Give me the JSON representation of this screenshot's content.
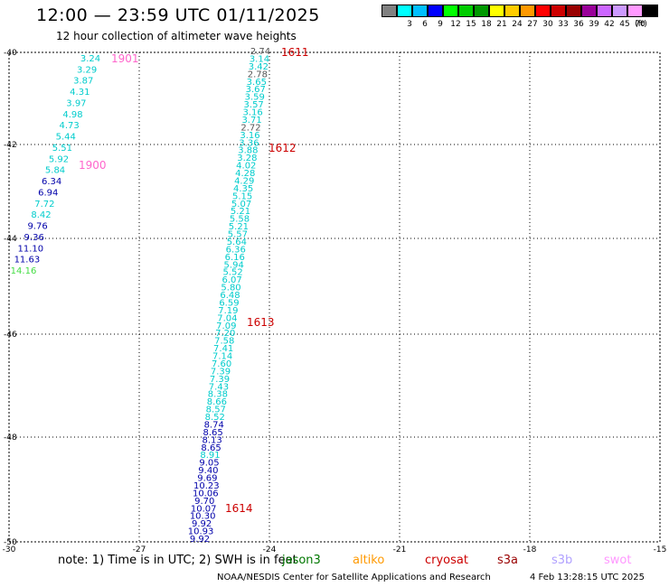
{
  "header": {
    "title": "12:00 — 23:59 UTC 01/11/2025",
    "subtitle": "12 hour collection of altimeter wave heights"
  },
  "legend": {
    "unit_label": "(ft)",
    "bins": [
      {
        "label": "",
        "color": "#808080"
      },
      {
        "label": "3",
        "color": "#00ffff"
      },
      {
        "label": "6",
        "color": "#00bfff"
      },
      {
        "label": "9",
        "color": "#0000ff"
      },
      {
        "label": "12",
        "color": "#00ff00"
      },
      {
        "label": "15",
        "color": "#00cc00"
      },
      {
        "label": "18",
        "color": "#009900"
      },
      {
        "label": "21",
        "color": "#ffff00"
      },
      {
        "label": "24",
        "color": "#ffcc00"
      },
      {
        "label": "27",
        "color": "#ff9900"
      },
      {
        "label": "30",
        "color": "#ff0000"
      },
      {
        "label": "33",
        "color": "#cc0000"
      },
      {
        "label": "36",
        "color": "#990000"
      },
      {
        "label": "39",
        "color": "#990099"
      },
      {
        "label": "42",
        "color": "#cc66ff"
      },
      {
        "label": "45",
        "color": "#cc99ff"
      },
      {
        "label": "70",
        "color": "#ff99ff"
      },
      {
        "label": "",
        "color": "#000000"
      }
    ]
  },
  "map": {
    "lat_labels": [
      "-40",
      "-42",
      "-44",
      "-46",
      "-48",
      "-50"
    ],
    "lon_labels": [
      "-30",
      "-27",
      "-24",
      "-21",
      "-18",
      "-15"
    ],
    "colors": {
      "cyan": "#00cccc",
      "blue": "#0000aa",
      "gray": "#555555",
      "green": "#44dd44",
      "red": "#cc0000",
      "pink": "#ff66cc"
    },
    "track_a": {
      "values": [
        "3.24",
        "3.29",
        "3.87",
        "4.31",
        "3.97",
        "4.98",
        "4.73",
        "5.44",
        "5.51",
        "5.92",
        "5.84",
        "6.34",
        "6.94",
        "7.72",
        "8.42",
        "9.76",
        "9.36",
        "11.10",
        "11.63",
        "14.16"
      ],
      "colors": [
        "cyan",
        "cyan",
        "cyan",
        "cyan",
        "cyan",
        "cyan",
        "cyan",
        "cyan",
        "cyan",
        "cyan",
        "cyan",
        "blue",
        "blue",
        "cyan",
        "cyan",
        "blue",
        "blue",
        "blue",
        "blue",
        "green"
      ],
      "times": [
        {
          "label": "1901",
          "color": "pink"
        },
        {
          "label": "1900",
          "color": "pink"
        }
      ]
    },
    "track_b": {
      "values": [
        "2.74",
        "3.14",
        "3.42",
        "2.78",
        "3.65",
        "3.67",
        "3.59",
        "3.57",
        "3.16",
        "3.71",
        "2.72",
        "3.16",
        "3.36",
        "3.88",
        "3.28",
        "4.02",
        "4.28",
        "4.29",
        "4.35",
        "5.15",
        "5.07",
        "5.21",
        "5.58",
        "5.21",
        "5.57",
        "5.64",
        "6.36",
        "6.16",
        "5.94",
        "5.52",
        "6.07",
        "5.80",
        "6.48",
        "6.59",
        "7.19",
        "7.04",
        "7.09",
        "7.20",
        "7.58",
        "7.41",
        "7.14",
        "7.60",
        "7.39",
        "7.39",
        "7.43",
        "8.38",
        "8.66",
        "8.57",
        "8.52",
        "8.74",
        "8.65",
        "8.13",
        "8.65",
        "8.91",
        "9.05",
        "9.40",
        "9.69",
        "10.23",
        "10.06",
        "9.70",
        "10.07",
        "10.30",
        "9.92",
        "10.93",
        "9.92"
      ],
      "colors": [
        "gray",
        "cyan",
        "cyan",
        "gray",
        "cyan",
        "cyan",
        "cyan",
        "cyan",
        "cyan",
        "cyan",
        "gray",
        "cyan",
        "cyan",
        "cyan",
        "cyan",
        "cyan",
        "cyan",
        "cyan",
        "cyan",
        "cyan",
        "cyan",
        "cyan",
        "cyan",
        "cyan",
        "cyan",
        "cyan",
        "cyan",
        "cyan",
        "cyan",
        "cyan",
        "cyan",
        "cyan",
        "cyan",
        "cyan",
        "cyan",
        "cyan",
        "cyan",
        "cyan",
        "cyan",
        "cyan",
        "cyan",
        "cyan",
        "cyan",
        "cyan",
        "cyan",
        "cyan",
        "cyan",
        "cyan",
        "cyan",
        "blue",
        "blue",
        "blue",
        "blue",
        "cyan",
        "blue",
        "blue",
        "blue",
        "blue",
        "blue",
        "blue",
        "blue",
        "blue",
        "blue",
        "blue",
        "blue"
      ],
      "times": [
        {
          "label": "1611",
          "color": "red"
        },
        {
          "label": "1612",
          "color": "red"
        },
        {
          "label": "1613",
          "color": "red"
        },
        {
          "label": "1614",
          "color": "red"
        }
      ]
    }
  },
  "footer": {
    "note": "note:  1) Time is in UTC;  2) SWH is in feet",
    "satellites": [
      {
        "name": "jason3",
        "color": "#007700"
      },
      {
        "name": "altiko",
        "color": "#ff9900"
      },
      {
        "name": "cryosat",
        "color": "#cc0000"
      },
      {
        "name": "s3a",
        "color": "#990000"
      },
      {
        "name": "s3b",
        "color": "#b0a0ff"
      },
      {
        "name": "swot",
        "color": "#ff99ff"
      }
    ],
    "credit": "NOAA/NESDIS Center for Satellite Applications and Research",
    "timestamp": "4 Feb 13:28:15 UTC 2025"
  }
}
